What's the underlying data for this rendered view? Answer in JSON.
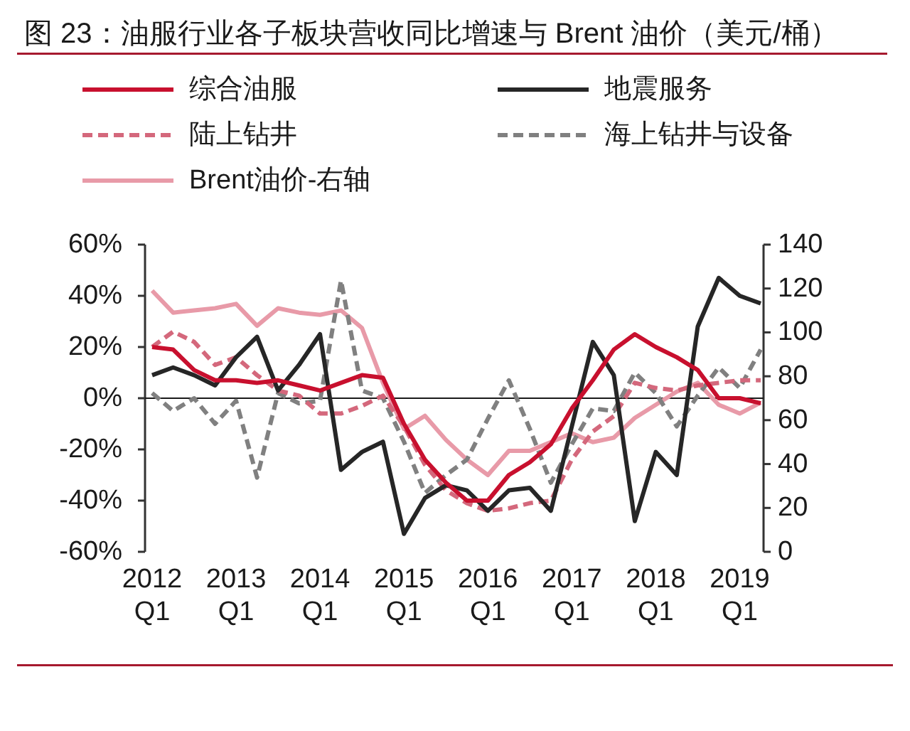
{
  "chart_data": {
    "type": "line",
    "title": "图 23：油服行业各子板块营收同比增速与 Brent 油价（美元/桶）",
    "categories": [
      "2012 Q1",
      null,
      null,
      null,
      "2013 Q1",
      null,
      null,
      null,
      "2014 Q1",
      null,
      null,
      null,
      "2015 Q1",
      null,
      null,
      null,
      "2016 Q1",
      null,
      null,
      null,
      "2017 Q1",
      null,
      null,
      null,
      "2018 Q1",
      null,
      null,
      null,
      "2019 Q1",
      null
    ],
    "ylim": [
      -60,
      60
    ],
    "yticks": [
      {
        "value": -60,
        "label": "-60%"
      },
      {
        "value": -40,
        "label": "-40%"
      },
      {
        "value": -20,
        "label": "-20%"
      },
      {
        "value": 0,
        "label": "0%"
      },
      {
        "value": 20,
        "label": "20%"
      },
      {
        "value": 40,
        "label": "40%"
      },
      {
        "value": 60,
        "label": "60%"
      }
    ],
    "y2lim": [
      0,
      140
    ],
    "y2ticks": [
      0,
      20,
      40,
      60,
      80,
      100,
      120,
      140
    ],
    "legend": "top",
    "series": [
      {
        "name": "综合油服",
        "color": "#c8102e",
        "line_style": "solid",
        "values": [
          20,
          19,
          11,
          7,
          7,
          6,
          7,
          5,
          3,
          6,
          9,
          8,
          -10,
          -24,
          -33,
          -40,
          -40,
          -30,
          -25,
          -18,
          -4,
          7,
          19,
          25,
          20,
          16,
          11,
          0,
          0,
          -2
        ]
      },
      {
        "name": "地震服务",
        "color": "#262626",
        "line_style": "solid",
        "values": [
          9,
          12,
          9,
          5,
          16,
          24,
          3,
          13,
          25,
          -28,
          -21,
          -17,
          -53,
          -39,
          -34,
          -36,
          -44,
          -36,
          -35,
          -44,
          -11,
          22,
          9,
          -48,
          -21,
          -30,
          28,
          47,
          40,
          37
        ]
      },
      {
        "name": "陆上钻井",
        "color": "#d4687c",
        "line_style": "dashed",
        "values": [
          20,
          26,
          22,
          13,
          16,
          9,
          3,
          1,
          -6,
          -6,
          -3,
          1,
          -11,
          -26,
          -36,
          -41,
          -44,
          -43,
          -41,
          -40,
          -24,
          -13,
          -7,
          6,
          4,
          3,
          5,
          6,
          7,
          7
        ]
      },
      {
        "name": "海上钻井与设备",
        "color": "#808080",
        "line_style": "dashed",
        "values": [
          2,
          -5,
          0,
          -10,
          -1,
          -31,
          2,
          -2,
          -1,
          46,
          3,
          0,
          -17,
          -37,
          -30,
          -24,
          -8,
          7,
          -12,
          -33,
          -18,
          -4,
          -5,
          10,
          2,
          -11,
          1,
          12,
          4,
          19
        ]
      },
      {
        "name": "Brent油价-右轴",
        "color": "#e89aa8",
        "line_style": "solid",
        "axis": "y2",
        "values": [
          119,
          109,
          110,
          111,
          113,
          103,
          111,
          109,
          108,
          110,
          102,
          77,
          56,
          62,
          51,
          42,
          35,
          46,
          46,
          50,
          54,
          50,
          52,
          61,
          67,
          73,
          77,
          67,
          63,
          68
        ]
      }
    ]
  }
}
